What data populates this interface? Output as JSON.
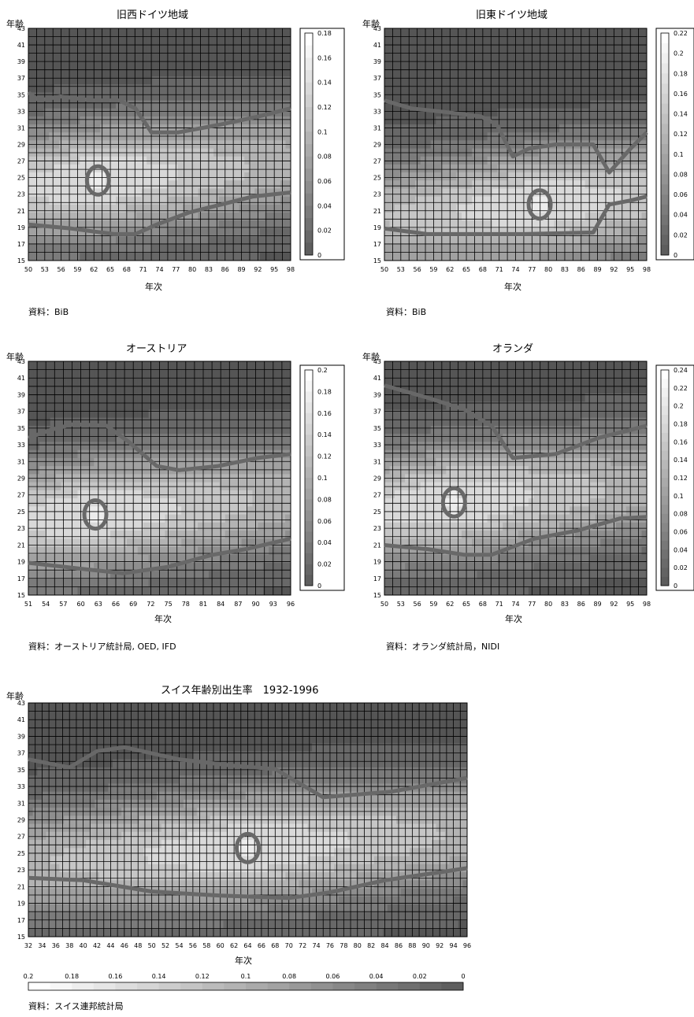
{
  "palette": [
    "#ffffff",
    "#a8a8a8",
    "#686868",
    "#555555"
  ],
  "chart_data": [
    {
      "type": "heatmap",
      "title": "旧西ドイツ地域",
      "ylabel": "年齢",
      "xlabel": "年次",
      "source": "資料：BiB",
      "x_ticks": [
        "50",
        "53",
        "56",
        "59",
        "62",
        "65",
        "68",
        "71",
        "74",
        "77",
        "80",
        "83",
        "86",
        "89",
        "92",
        "95",
        "98"
      ],
      "y_ticks": [
        "15",
        "17",
        "19",
        "21",
        "23",
        "25",
        "27",
        "29",
        "31",
        "33",
        "35",
        "37",
        "39",
        "41",
        "43"
      ],
      "xlim": [
        1950,
        1999
      ],
      "ylim": [
        15,
        44
      ],
      "legend_values": [
        "0.18",
        "0.16",
        "0.14",
        "0.12",
        "0.1",
        "0.08",
        "0.06",
        "0.04",
        "0.02",
        "0"
      ],
      "peak": {
        "x": 1963,
        "y": 25,
        "value": 0.18
      },
      "contour_lines": [
        {
          "name": "upper",
          "points": [
            [
              1950,
              36
            ],
            [
              1952,
              35
            ],
            [
              1956,
              35.5
            ],
            [
              1962,
              35
            ],
            [
              1967,
              35
            ],
            [
              1970,
              34
            ],
            [
              1973,
              31
            ],
            [
              1978,
              31
            ],
            [
              1986,
              32
            ],
            [
              1993,
              33
            ],
            [
              1999,
              34
            ]
          ]
        },
        {
          "name": "lower",
          "points": [
            [
              1950,
              19.5
            ],
            [
              1958,
              19
            ],
            [
              1966,
              18.3
            ],
            [
              1970,
              18.3
            ],
            [
              1974,
              19.5
            ],
            [
              1980,
              21
            ],
            [
              1986,
              22
            ],
            [
              1992,
              23
            ],
            [
              1999,
              23.5
            ]
          ]
        }
      ]
    },
    {
      "type": "heatmap",
      "title": "旧東ドイツ地域",
      "ylabel": "年齢",
      "xlabel": "年次",
      "source": "資料：BiB",
      "x_ticks": [
        "50",
        "53",
        "56",
        "59",
        "62",
        "65",
        "68",
        "71",
        "74",
        "77",
        "80",
        "83",
        "86",
        "89",
        "92",
        "95",
        "98"
      ],
      "y_ticks": [
        "15",
        "17",
        "19",
        "21",
        "23",
        "25",
        "27",
        "29",
        "31",
        "33",
        "35",
        "37",
        "39",
        "41",
        "43"
      ],
      "xlim": [
        1950,
        1999
      ],
      "ylim": [
        15,
        44
      ],
      "legend_values": [
        "0.22",
        "0.2",
        "0.18",
        "0.16",
        "0.14",
        "0.12",
        "0.1",
        "0.08",
        "0.06",
        "0.04",
        "0.02",
        "0"
      ],
      "peak": {
        "x": 1979,
        "y": 22,
        "value": 0.22
      },
      "contour_lines": [
        {
          "name": "upper",
          "points": [
            [
              1950,
              35
            ],
            [
              1955,
              34
            ],
            [
              1962,
              33.5
            ],
            [
              1968,
              33
            ],
            [
              1971,
              32
            ],
            [
              1974,
              28
            ],
            [
              1977,
              29
            ],
            [
              1982,
              29.5
            ],
            [
              1989,
              29.5
            ],
            [
              1992,
              26
            ],
            [
              1996,
              29
            ],
            [
              1999,
              31
            ]
          ]
        },
        {
          "name": "lower",
          "points": [
            [
              1950,
              19
            ],
            [
              1958,
              18.3
            ],
            [
              1966,
              18.3
            ],
            [
              1976,
              18.3
            ],
            [
              1989,
              18.5
            ],
            [
              1992,
              22
            ],
            [
              1996,
              22.5
            ],
            [
              1999,
              23
            ]
          ]
        }
      ]
    },
    {
      "type": "heatmap",
      "title": "オーストリア",
      "ylabel": "年齢",
      "xlabel": "年次",
      "source": "資料：オーストリア統計局, OED, IFD",
      "x_ticks": [
        "51",
        "54",
        "57",
        "60",
        "63",
        "66",
        "69",
        "72",
        "75",
        "78",
        "81",
        "84",
        "87",
        "90",
        "93",
        "96"
      ],
      "y_ticks": [
        "15",
        "17",
        "19",
        "21",
        "23",
        "25",
        "27",
        "29",
        "31",
        "33",
        "35",
        "37",
        "39",
        "41",
        "43"
      ],
      "xlim": [
        1951,
        1998
      ],
      "ylim": [
        15,
        44
      ],
      "legend_values": [
        "0.2",
        "0.18",
        "0.16",
        "0.14",
        "0.12",
        "0.1",
        "0.08",
        "0.06",
        "0.04",
        "0.02",
        "0"
      ],
      "peak": {
        "x": 1963,
        "y": 25,
        "value": 0.2
      },
      "contour_lines": [
        {
          "name": "upper",
          "points": [
            [
              1951,
              34.5
            ],
            [
              1955,
              35.5
            ],
            [
              1959,
              36.2
            ],
            [
              1965,
              36
            ],
            [
              1969,
              34
            ],
            [
              1974,
              31
            ],
            [
              1978,
              30.5
            ],
            [
              1985,
              31
            ],
            [
              1992,
              32
            ],
            [
              1998,
              32.5
            ]
          ]
        },
        {
          "name": "lower",
          "points": [
            [
              1951,
              19
            ],
            [
              1960,
              18.3
            ],
            [
              1968,
              17.7
            ],
            [
              1976,
              18.5
            ],
            [
              1984,
              20
            ],
            [
              1990,
              20.7
            ],
            [
              1998,
              22
            ]
          ]
        }
      ]
    },
    {
      "type": "heatmap",
      "title": "オランダ",
      "ylabel": "年齢",
      "xlabel": "年次",
      "source": "資料：オランダ統計局，NIDI",
      "x_ticks": [
        "50",
        "53",
        "56",
        "59",
        "62",
        "65",
        "68",
        "71",
        "74",
        "77",
        "80",
        "83",
        "86",
        "89",
        "92",
        "95",
        "98"
      ],
      "y_ticks": [
        "15",
        "17",
        "19",
        "21",
        "23",
        "25",
        "27",
        "29",
        "31",
        "33",
        "35",
        "37",
        "39",
        "41",
        "43"
      ],
      "xlim": [
        1950,
        1999
      ],
      "ylim": [
        15,
        44
      ],
      "legend_values": [
        "0.24",
        "0.22",
        "0.2",
        "0.18",
        "0.16",
        "0.14",
        "0.12",
        "0.1",
        "0.08",
        "0.06",
        "0.04",
        "0.02",
        "0"
      ],
      "peak": {
        "x": 1963,
        "y": 26.5,
        "value": 0.24
      },
      "contour_lines": [
        {
          "name": "upper",
          "points": [
            [
              1950,
              41
            ],
            [
              1958,
              39.5
            ],
            [
              1965,
              38
            ],
            [
              1970,
              36
            ],
            [
              1974,
              32
            ],
            [
              1982,
              32.5
            ],
            [
              1990,
              34.5
            ],
            [
              1999,
              36
            ]
          ]
        },
        {
          "name": "lower",
          "points": [
            [
              1950,
              21.2
            ],
            [
              1958,
              20.7
            ],
            [
              1965,
              20
            ],
            [
              1970,
              20
            ],
            [
              1978,
              22
            ],
            [
              1986,
              23
            ],
            [
              1994,
              24.5
            ],
            [
              1999,
              24.7
            ]
          ]
        }
      ]
    },
    {
      "type": "heatmap",
      "title": "スイス年齢別出生率　1932-1996",
      "ylabel": "年齢",
      "xlabel": "年次",
      "source": "資料：スイス連邦統計局",
      "x_ticks": [
        "32",
        "34",
        "36",
        "38",
        "40",
        "42",
        "44",
        "46",
        "48",
        "50",
        "52",
        "54",
        "56",
        "58",
        "60",
        "62",
        "64",
        "66",
        "68",
        "70",
        "72",
        "74",
        "76",
        "78",
        "80",
        "82",
        "84",
        "86",
        "88",
        "90",
        "92",
        "94",
        "96"
      ],
      "y_ticks": [
        "15",
        "17",
        "19",
        "21",
        "23",
        "25",
        "27",
        "29",
        "31",
        "33",
        "35",
        "37",
        "39",
        "41",
        "43"
      ],
      "xlim": [
        1932,
        1996
      ],
      "ylim": [
        15,
        44
      ],
      "legend_values": [
        "0.2",
        "0.18",
        "0.16",
        "0.14",
        "0.12",
        "0.1",
        "0.08",
        "0.06",
        "0.04",
        "0.02",
        "0"
      ],
      "peak": {
        "x": 1964,
        "y": 26,
        "value": 0.2
      },
      "contour_lines": [
        {
          "name": "upper",
          "points": [
            [
              1932,
              37
            ],
            [
              1938,
              36
            ],
            [
              1942,
              38
            ],
            [
              1946,
              38.5
            ],
            [
              1954,
              37
            ],
            [
              1962,
              36.2
            ],
            [
              1968,
              35.8
            ],
            [
              1975,
              32.3
            ],
            [
              1985,
              33
            ],
            [
              1996,
              34.7
            ]
          ]
        },
        {
          "name": "lower",
          "points": [
            [
              1932,
              22.3
            ],
            [
              1940,
              22
            ],
            [
              1950,
              20.6
            ],
            [
              1960,
              20.1
            ],
            [
              1970,
              19.8
            ],
            [
              1976,
              20.5
            ],
            [
              1984,
              22
            ],
            [
              1992,
              23
            ],
            [
              1996,
              23.5
            ]
          ]
        }
      ]
    }
  ]
}
